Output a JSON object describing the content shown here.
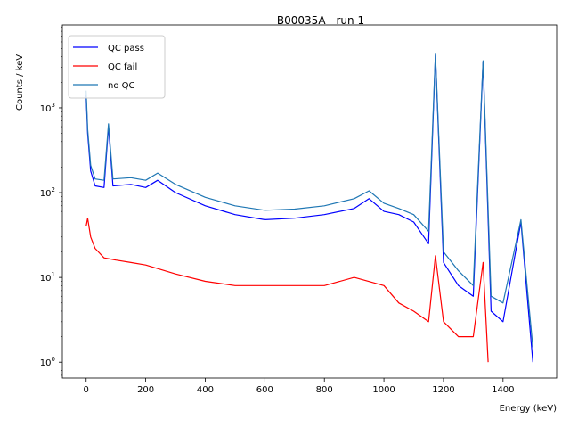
{
  "chart_data": {
    "type": "line",
    "title": "B00035A - run 1",
    "xlabel": "Energy (keV)",
    "ylabel": "Counts / keV",
    "xlim": [
      -80,
      1580
    ],
    "ylim": [
      0.65,
      9500
    ],
    "yscale": "log",
    "grid": false,
    "legend_position": "top-left",
    "xticks": [
      0,
      200,
      400,
      600,
      800,
      1000,
      1200,
      1400
    ],
    "yticks": [
      1,
      10,
      100,
      1000
    ],
    "ytick_labels": [
      "10^0",
      "10^1",
      "10^2",
      "10^3"
    ],
    "series": [
      {
        "name": "QC pass",
        "color": "#0000ff",
        "x": [
          0,
          5,
          15,
          30,
          60,
          75,
          90,
          150,
          200,
          240,
          300,
          400,
          500,
          600,
          700,
          800,
          900,
          950,
          1000,
          1050,
          1100,
          1150,
          1173,
          1200,
          1250,
          1300,
          1333,
          1360,
          1400,
          1460,
          1500
        ],
        "y": [
          1400,
          500,
          180,
          120,
          115,
          600,
          120,
          125,
          115,
          140,
          100,
          70,
          55,
          48,
          50,
          55,
          65,
          85,
          60,
          55,
          45,
          25,
          4200,
          15,
          8,
          6,
          3500,
          4,
          3,
          45,
          1
        ]
      },
      {
        "name": "QC fail",
        "color": "#ff0000",
        "x": [
          0,
          5,
          15,
          30,
          60,
          100,
          150,
          200,
          300,
          400,
          500,
          600,
          700,
          800,
          900,
          1000,
          1050,
          1100,
          1150,
          1173,
          1200,
          1250,
          1300,
          1333,
          1350
        ],
        "y": [
          40,
          50,
          30,
          22,
          17,
          16,
          15,
          14,
          11,
          9,
          8,
          8,
          8,
          8,
          10,
          8,
          5,
          4,
          3,
          18,
          3,
          2,
          2,
          15,
          1
        ]
      },
      {
        "name": "no QC",
        "color": "#1f77b4",
        "x": [
          0,
          5,
          15,
          30,
          60,
          75,
          90,
          150,
          200,
          240,
          300,
          400,
          500,
          600,
          700,
          800,
          900,
          950,
          1000,
          1050,
          1100,
          1150,
          1173,
          1200,
          1250,
          1300,
          1333,
          1360,
          1400,
          1460,
          1500
        ],
        "y": [
          1600,
          560,
          210,
          145,
          140,
          650,
          145,
          150,
          140,
          170,
          125,
          88,
          70,
          62,
          64,
          70,
          85,
          105,
          75,
          65,
          55,
          35,
          4300,
          20,
          12,
          8,
          3600,
          6,
          5,
          48,
          1.5
        ]
      }
    ]
  }
}
